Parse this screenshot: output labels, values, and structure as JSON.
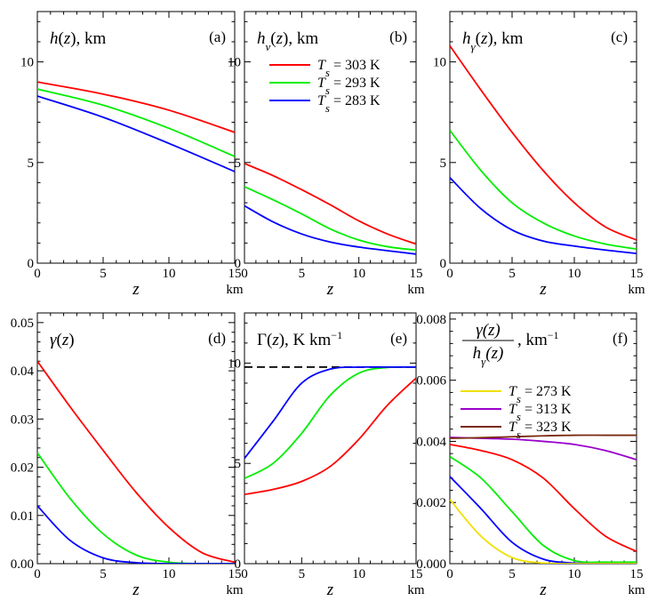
{
  "chart_data": [
    {
      "type": "line",
      "panel": "(a)",
      "title_parts": [
        {
          "t": "h",
          "i": true
        },
        {
          "t": "("
        },
        {
          "t": "z",
          "i": true
        },
        {
          "t": "), km"
        }
      ],
      "xlabel": "z",
      "x_unit": "km",
      "xlim": [
        0,
        15
      ],
      "ylim": [
        0,
        12.5
      ],
      "xticks": [
        0,
        5,
        10,
        15
      ],
      "yticks": [
        0,
        5,
        10
      ],
      "ytick_labels": [
        "0",
        "5",
        "10"
      ],
      "series": [
        {
          "color": "#ff0000",
          "x": [
            0,
            5,
            10,
            15
          ],
          "y": [
            9.0,
            8.4,
            7.6,
            6.5
          ]
        },
        {
          "color": "#00ee00",
          "x": [
            0,
            5,
            10,
            15
          ],
          "y": [
            8.65,
            7.85,
            6.7,
            5.3
          ]
        },
        {
          "color": "#0000ff",
          "x": [
            0,
            5,
            10,
            15
          ],
          "y": [
            8.3,
            7.25,
            5.95,
            4.55
          ]
        }
      ]
    },
    {
      "type": "line",
      "panel": "(b)",
      "title_parts": [
        {
          "t": "h",
          "i": true
        },
        {
          "t": "v",
          "i": true,
          "sub": true
        },
        {
          "t": "("
        },
        {
          "t": "z",
          "i": true
        },
        {
          "t": "), km"
        }
      ],
      "xlabel": "z",
      "x_unit": "km",
      "xlim": [
        0,
        15
      ],
      "ylim": [
        0,
        12.5
      ],
      "xticks": [
        0,
        5,
        10,
        15
      ],
      "yticks": [
        0,
        5,
        10
      ],
      "ytick_labels": [
        "0",
        "5",
        "10"
      ],
      "legend": [
        {
          "label": "T",
          "sub": "s",
          "value": " = 303 K",
          "color": "#ff0000"
        },
        {
          "label": "T",
          "sub": "s",
          "value": " = 293 K",
          "color": "#00ee00"
        },
        {
          "label": "T",
          "sub": "s",
          "value": " = 283 K",
          "color": "#0000ff"
        }
      ],
      "series": [
        {
          "color": "#ff0000",
          "x": [
            0,
            2.5,
            5,
            7.5,
            10,
            12.5,
            15
          ],
          "y": [
            4.95,
            4.35,
            3.65,
            2.9,
            2.1,
            1.45,
            0.95
          ]
        },
        {
          "color": "#00ee00",
          "x": [
            0,
            2.5,
            5,
            7.5,
            10,
            12.5,
            15
          ],
          "y": [
            3.8,
            3.15,
            2.45,
            1.7,
            1.15,
            0.82,
            0.65
          ]
        },
        {
          "color": "#0000ff",
          "x": [
            0,
            2.5,
            5,
            7.5,
            10,
            12.5,
            15
          ],
          "y": [
            2.85,
            2.05,
            1.45,
            1.05,
            0.8,
            0.62,
            0.45
          ]
        }
      ]
    },
    {
      "type": "line",
      "panel": "(c)",
      "title_parts": [
        {
          "t": "h",
          "i": true
        },
        {
          "t": "γ",
          "i": true,
          "sub": true
        },
        {
          "t": "("
        },
        {
          "t": "z",
          "i": true
        },
        {
          "t": "), km"
        }
      ],
      "xlabel": "z",
      "x_unit": "km",
      "xlim": [
        0,
        15
      ],
      "ylim": [
        0,
        12.5
      ],
      "xticks": [
        0,
        5,
        10,
        15
      ],
      "yticks": [
        0,
        5,
        10
      ],
      "ytick_labels": [
        "0",
        "5",
        "10"
      ],
      "series": [
        {
          "color": "#ff0000",
          "x": [
            0,
            2.5,
            5,
            7.5,
            10,
            12.5,
            15
          ],
          "y": [
            10.8,
            8.6,
            6.5,
            4.6,
            3.0,
            1.8,
            1.15
          ]
        },
        {
          "color": "#00ee00",
          "x": [
            0,
            2.5,
            5,
            7.5,
            10,
            12.5,
            15
          ],
          "y": [
            6.6,
            4.6,
            3.0,
            2.0,
            1.35,
            0.95,
            0.7
          ]
        },
        {
          "color": "#0000ff",
          "x": [
            0,
            2.5,
            5,
            7.5,
            10,
            12.5,
            15
          ],
          "y": [
            4.25,
            2.7,
            1.65,
            1.1,
            0.85,
            0.65,
            0.48
          ]
        }
      ]
    },
    {
      "type": "line",
      "panel": "(d)",
      "title_parts": [
        {
          "t": "γ",
          "i": true
        },
        {
          "t": "("
        },
        {
          "t": "z",
          "i": true
        },
        {
          "t": ")"
        }
      ],
      "xlabel": "z",
      "x_unit": "km",
      "xlim": [
        0,
        15
      ],
      "ylim": [
        0,
        0.052
      ],
      "xticks": [
        0,
        5,
        10,
        15
      ],
      "yticks": [
        0,
        0.01,
        0.02,
        0.03,
        0.04,
        0.05
      ],
      "ytick_labels": [
        "0.00",
        "0.01",
        "0.02",
        "0.03",
        "0.04",
        "0.05"
      ],
      "series": [
        {
          "color": "#ff0000",
          "x": [
            0,
            2.5,
            5,
            7.5,
            10,
            12.5,
            15
          ],
          "y": [
            0.042,
            0.0325,
            0.0235,
            0.0148,
            0.0075,
            0.0023,
            0.0003
          ]
        },
        {
          "color": "#00ee00",
          "x": [
            0,
            2.5,
            5,
            7.5,
            10,
            12.5,
            15
          ],
          "y": [
            0.023,
            0.0135,
            0.0062,
            0.0018,
            0.0003,
            0.0,
            0.0
          ]
        },
        {
          "color": "#0000ff",
          "x": [
            0,
            2.5,
            5,
            7.5,
            10,
            12.5,
            15
          ],
          "y": [
            0.012,
            0.0048,
            0.0012,
            0.0002,
            0.0,
            0.0,
            0.0
          ]
        }
      ]
    },
    {
      "type": "line",
      "panel": "(e)",
      "title_parts": [
        {
          "t": "Γ"
        },
        {
          "t": "("
        },
        {
          "t": "z",
          "i": true
        },
        {
          "t": "), K km"
        },
        {
          "t": "−1",
          "sup": true
        }
      ],
      "xlabel": "z",
      "x_unit": "km",
      "xlim": [
        0,
        15
      ],
      "ylim": [
        0,
        12.5
      ],
      "xticks": [
        0,
        5,
        10,
        15
      ],
      "yticks": [
        0,
        5,
        10
      ],
      "ytick_labels": [
        "0",
        "5",
        "10"
      ],
      "reference_line": {
        "y": 9.8,
        "color": "#000000",
        "style": "dashed"
      },
      "series": [
        {
          "color": "#ff0000",
          "x": [
            0,
            2.5,
            5,
            7.5,
            10,
            12.5,
            15
          ],
          "y": [
            3.45,
            3.7,
            4.1,
            4.85,
            6.2,
            7.9,
            9.25
          ]
        },
        {
          "color": "#00ee00",
          "x": [
            0,
            2.5,
            5,
            7.5,
            10,
            12.5,
            15
          ],
          "y": [
            4.25,
            5.0,
            6.5,
            8.4,
            9.5,
            9.78,
            9.8
          ]
        },
        {
          "color": "#0000ff",
          "x": [
            0,
            2.5,
            5,
            7.5,
            10,
            12.5,
            15
          ],
          "y": [
            5.25,
            7.1,
            9.0,
            9.7,
            9.8,
            9.8,
            9.8
          ]
        }
      ]
    },
    {
      "type": "line",
      "panel": "(f)",
      "title_fraction": {
        "num": "γ(z)",
        "den_main": "h",
        "den_sub": "γ",
        "den_tail": "(z)",
        "unit": ", km",
        "unit_sup": "−1"
      },
      "xlabel": "z",
      "x_unit": "km",
      "xlim": [
        0,
        15
      ],
      "ylim": [
        0,
        0.0082
      ],
      "xticks": [
        0,
        5,
        10,
        15
      ],
      "yticks": [
        0,
        0.002,
        0.004,
        0.006,
        0.008
      ],
      "ytick_labels": [
        "0.000",
        "0.002",
        "0.004",
        "0.006",
        "0.008"
      ],
      "legend": [
        {
          "label": "T",
          "sub": "s",
          "value": " = 273 K",
          "color": "#f0e000"
        },
        {
          "label": "T",
          "sub": "s",
          "value": " = 313 K",
          "color": "#9900cc"
        },
        {
          "label": "T",
          "sub": "s",
          "value": " = 323 K",
          "color": "#7a2a10"
        }
      ],
      "series": [
        {
          "color": "#ff0000",
          "x": [
            0,
            2.5,
            5,
            7.5,
            10,
            12.5,
            15
          ],
          "y": [
            0.0039,
            0.0037,
            0.0034,
            0.0028,
            0.0018,
            0.0009,
            0.0004
          ]
        },
        {
          "color": "#00ee00",
          "x": [
            0,
            2.5,
            5,
            7.5,
            10,
            12.5,
            15
          ],
          "y": [
            0.0035,
            0.0028,
            0.0017,
            0.0006,
            0.0001,
            5e-05,
            5e-05
          ]
        },
        {
          "color": "#0000ff",
          "x": [
            0,
            2.5,
            5,
            7.5,
            10,
            12.5,
            15
          ],
          "y": [
            0.00285,
            0.0018,
            0.0007,
            0.00015,
            2e-05,
            0.0,
            0.0
          ]
        },
        {
          "color": "#f0e000",
          "x": [
            0,
            2.5,
            5,
            7.5,
            10,
            12.5,
            15
          ],
          "y": [
            0.0021,
            0.0009,
            0.0002,
            2e-05,
            0.0,
            0.0,
            0.0
          ]
        },
        {
          "color": "#9900cc",
          "x": [
            0,
            2.5,
            5,
            7.5,
            10,
            12.5,
            15
          ],
          "y": [
            0.00413,
            0.0041,
            0.00407,
            0.004,
            0.0039,
            0.0037,
            0.0034
          ]
        },
        {
          "color": "#7a2a10",
          "x": [
            0,
            2.5,
            5,
            7.5,
            10,
            12.5,
            15
          ],
          "y": [
            0.0041,
            0.00412,
            0.00415,
            0.00418,
            0.0042,
            0.0042,
            0.0042
          ]
        }
      ]
    }
  ]
}
